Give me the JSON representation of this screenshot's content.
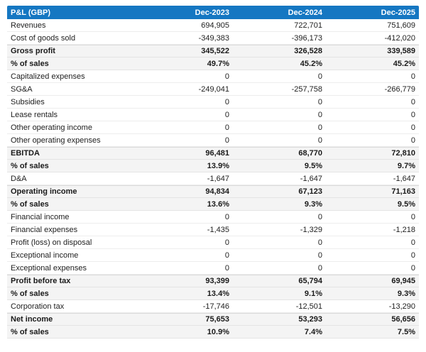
{
  "colors": {
    "header_bg": "#1577c2",
    "header_text": "#ffffff",
    "highlight_row_bg": "#f4f4f4",
    "body_text": "#212121"
  },
  "chart_data": {
    "type": "table",
    "title": "P&L (GBP)",
    "columns": [
      "Dec-2023",
      "Dec-2024",
      "Dec-2025"
    ],
    "rows": [
      {
        "label": "Revenues",
        "values": [
          "694,905",
          "722,701",
          "751,609"
        ],
        "bold": false
      },
      {
        "label": "Cost of goods sold",
        "values": [
          "-349,383",
          "-396,173",
          "-412,020"
        ],
        "bold": false
      },
      {
        "label": "Gross profit",
        "values": [
          "345,522",
          "326,528",
          "339,589"
        ],
        "bold": true
      },
      {
        "label": "% of sales",
        "values": [
          "49.7%",
          "45.2%",
          "45.2%"
        ],
        "bold": true
      },
      {
        "label": "Capitalized expenses",
        "values": [
          "0",
          "0",
          "0"
        ],
        "bold": false
      },
      {
        "label": "SG&A",
        "values": [
          "-249,041",
          "-257,758",
          "-266,779"
        ],
        "bold": false
      },
      {
        "label": "Subsidies",
        "values": [
          "0",
          "0",
          "0"
        ],
        "bold": false
      },
      {
        "label": "Lease rentals",
        "values": [
          "0",
          "0",
          "0"
        ],
        "bold": false
      },
      {
        "label": "Other operating income",
        "values": [
          "0",
          "0",
          "0"
        ],
        "bold": false
      },
      {
        "label": "Other operating expenses",
        "values": [
          "0",
          "0",
          "0"
        ],
        "bold": false
      },
      {
        "label": "EBITDA",
        "values": [
          "96,481",
          "68,770",
          "72,810"
        ],
        "bold": true
      },
      {
        "label": "% of sales",
        "values": [
          "13.9%",
          "9.5%",
          "9.7%"
        ],
        "bold": true
      },
      {
        "label": "D&A",
        "values": [
          "-1,647",
          "-1,647",
          "-1,647"
        ],
        "bold": false
      },
      {
        "label": "Operating income",
        "values": [
          "94,834",
          "67,123",
          "71,163"
        ],
        "bold": true
      },
      {
        "label": "% of sales",
        "values": [
          "13.6%",
          "9.3%",
          "9.5%"
        ],
        "bold": true
      },
      {
        "label": "Financial income",
        "values": [
          "0",
          "0",
          "0"
        ],
        "bold": false
      },
      {
        "label": "Financial expenses",
        "values": [
          "-1,435",
          "-1,329",
          "-1,218"
        ],
        "bold": false
      },
      {
        "label": "Profit (loss) on disposal",
        "values": [
          "0",
          "0",
          "0"
        ],
        "bold": false
      },
      {
        "label": "Exceptional income",
        "values": [
          "0",
          "0",
          "0"
        ],
        "bold": false
      },
      {
        "label": "Exceptional expenses",
        "values": [
          "0",
          "0",
          "0"
        ],
        "bold": false
      },
      {
        "label": "Profit before tax",
        "values": [
          "93,399",
          "65,794",
          "69,945"
        ],
        "bold": true
      },
      {
        "label": "% of sales",
        "values": [
          "13.4%",
          "9.1%",
          "9.3%"
        ],
        "bold": true
      },
      {
        "label": "Corporation tax",
        "values": [
          "-17,746",
          "-12,501",
          "-13,290"
        ],
        "bold": false
      },
      {
        "label": "Net income",
        "values": [
          "75,653",
          "53,293",
          "56,656"
        ],
        "bold": true
      },
      {
        "label": "% of sales",
        "values": [
          "10.9%",
          "7.4%",
          "7.5%"
        ],
        "bold": true
      }
    ]
  }
}
